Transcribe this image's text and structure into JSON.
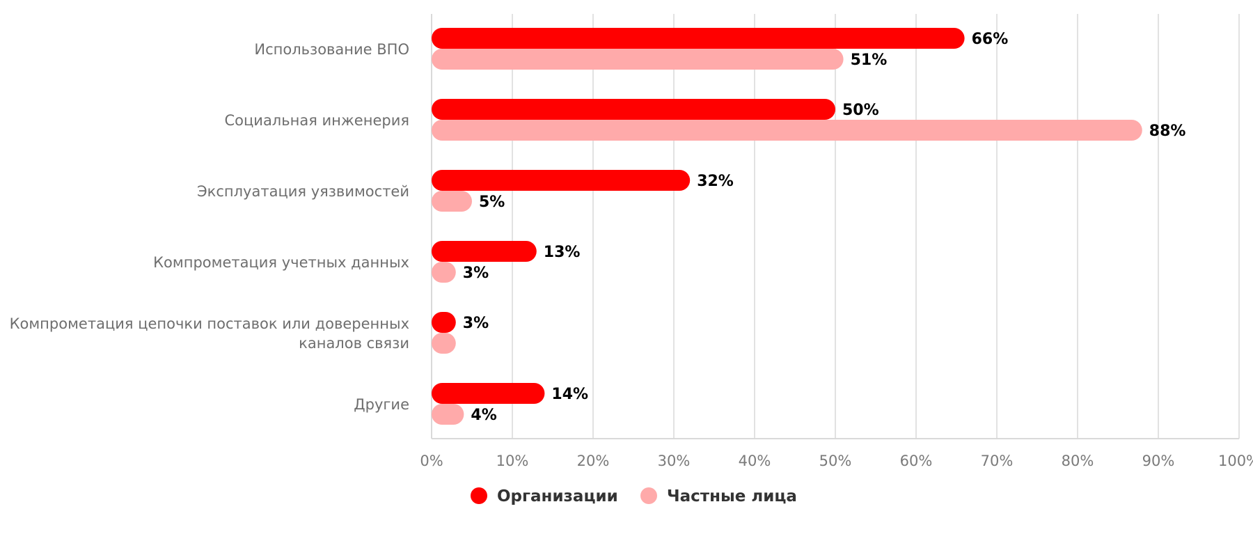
{
  "chart_data": {
    "type": "bar",
    "orientation": "horizontal",
    "categories": [
      [
        "Использование ВПО"
      ],
      [
        "Социальная инженерия"
      ],
      [
        "Эксплуатация уязвимостей"
      ],
      [
        "Компрометация учетных данных"
      ],
      [
        "Компрометация цепочки поставок или доверенных",
        "каналов связи"
      ],
      [
        "Другие"
      ]
    ],
    "series": [
      {
        "name": "Организации",
        "color": "#ff0000",
        "values": [
          66,
          50,
          32,
          13,
          3,
          14
        ],
        "value_labels": [
          "66%",
          "50%",
          "32%",
          "13%",
          "3%",
          "14%"
        ]
      },
      {
        "name": "Частные лица",
        "color": "#ffaaaa",
        "values": [
          51,
          88,
          5,
          3,
          3,
          4
        ],
        "value_labels": [
          "51%",
          "88%",
          "5%",
          "3%",
          "",
          "4%"
        ]
      }
    ],
    "xlim": [
      0,
      100
    ],
    "x_ticks": [
      0,
      10,
      20,
      30,
      40,
      50,
      60,
      70,
      80,
      90,
      100
    ],
    "x_tick_labels": [
      "0%",
      "10%",
      "20%",
      "30%",
      "40%",
      "50%",
      "60%",
      "70%",
      "80%",
      "90%",
      "100%"
    ],
    "grid": true,
    "legend_position": "bottom",
    "title": "",
    "xlabel": "",
    "ylabel": ""
  }
}
